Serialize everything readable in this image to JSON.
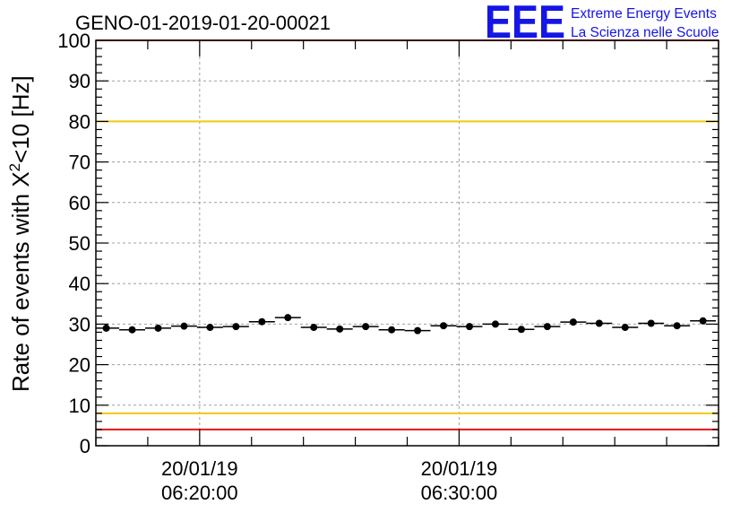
{
  "chart_data": {
    "type": "scatter",
    "title": "GENO-01-2019-01-20-00021",
    "ylabel": {
      "main": "Rate of events with X",
      "superscript": "2",
      "suffix": "<10 [Hz]"
    },
    "xlabel": "",
    "ylim": [
      0,
      100
    ],
    "y_ticks": [
      0,
      10,
      20,
      30,
      40,
      50,
      60,
      70,
      80,
      90,
      100
    ],
    "xlim_minutes": [
      16.0,
      40.0
    ],
    "x_major_ticks": [
      {
        "minute": 20,
        "date": "20/01/19",
        "time": "06:20:00"
      },
      {
        "minute": 30,
        "date": "20/01/19",
        "time": "06:30:00"
      }
    ],
    "x_minor_step_minutes": 2,
    "grid": true,
    "series": [
      {
        "name": "rate",
        "bin_width_minutes": 1.0,
        "x_minutes": [
          16.4,
          17.4,
          18.4,
          19.4,
          20.4,
          21.4,
          22.4,
          23.4,
          24.4,
          25.4,
          26.4,
          27.4,
          28.4,
          29.4,
          30.4,
          31.4,
          32.4,
          33.4,
          34.4,
          35.4,
          36.4,
          37.4,
          38.4,
          39.4
        ],
        "values": [
          29.0,
          28.6,
          29.0,
          29.5,
          29.2,
          29.4,
          30.6,
          31.6,
          29.2,
          28.8,
          29.4,
          28.6,
          28.4,
          29.6,
          29.4,
          30.0,
          28.7,
          29.4,
          30.5,
          30.2,
          29.2,
          30.2,
          29.6,
          30.8
        ],
        "errors": [
          0.5,
          0.5,
          0.5,
          0.5,
          0.5,
          0.5,
          0.5,
          0.5,
          0.5,
          0.5,
          0.5,
          0.5,
          0.5,
          0.5,
          0.5,
          0.5,
          0.5,
          0.5,
          0.5,
          0.5,
          0.5,
          0.5,
          0.5,
          0.5
        ]
      }
    ],
    "reference_lines": [
      {
        "name": "upper-red-limit",
        "value": 100,
        "color": "#e8141a"
      },
      {
        "name": "upper-yellow-limit",
        "value": 80,
        "color": "#f2c811"
      },
      {
        "name": "lower-yellow-limit",
        "value": 8,
        "color": "#f2c811"
      },
      {
        "name": "lower-red-limit",
        "value": 4,
        "color": "#e8141a"
      }
    ],
    "colors": {
      "marker": "#000000",
      "grid": "#a0a0a0",
      "axis": "#000000"
    }
  },
  "logo": {
    "mark": "EEE",
    "line1": "Extreme Energy Events",
    "line2": "La Scienza nelle Scuole",
    "color": "#1515e6"
  }
}
